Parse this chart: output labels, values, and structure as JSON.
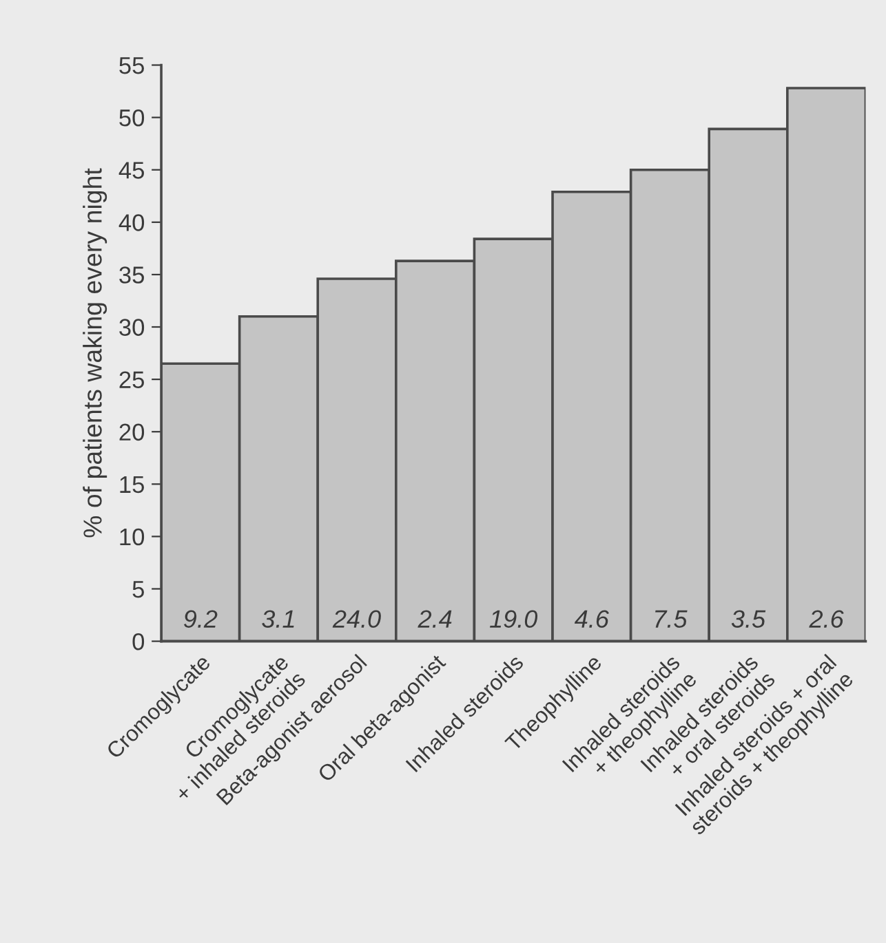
{
  "chart_data": {
    "type": "bar",
    "ylabel": "% of patients waking every night",
    "categories": [
      "Cromoglycate",
      "Cromoglycate\n+ inhaled steroids",
      "Beta-agonist aerosol",
      "Oral beta-agonist",
      "Inhaled steroids",
      "Theophylline",
      "Inhaled steroids\n+ theophylline",
      "Inhaled steroids\n+ oral steroids",
      "Inhaled steroids + oral\nsteroids + theophylline"
    ],
    "values": [
      26.5,
      31.0,
      34.6,
      36.3,
      38.4,
      42.9,
      45.0,
      48.9,
      52.8
    ],
    "color": "#c4c4c4",
    "ylim": [
      0,
      55
    ],
    "yticks": [
      0,
      5,
      10,
      15,
      20,
      25,
      30,
      35,
      40,
      45,
      50,
      55
    ],
    "grid": false,
    "annotations": [
      "9.2",
      "3.1",
      "24.0",
      "2.4",
      "19.0",
      "4.6",
      "7.5",
      "3.5",
      "2.6"
    ]
  }
}
